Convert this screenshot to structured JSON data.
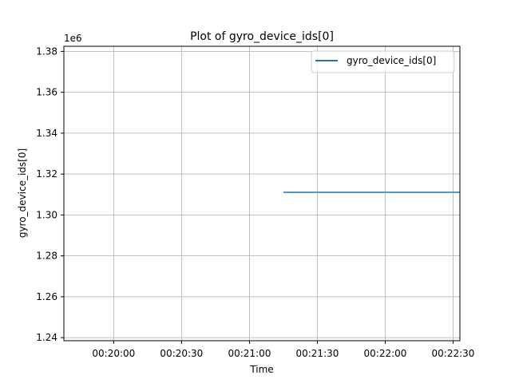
{
  "chart_data": {
    "type": "line",
    "title": "Plot of gyro_device_ids[0]",
    "xlabel": "Time",
    "ylabel": "gyro_device_ids[0]",
    "y_offset_label": "1e6",
    "x_axis_type": "time",
    "xlim": [
      "00:19:38",
      "00:22:33"
    ],
    "ylim": [
      1.2385,
      1.3825
    ],
    "x_ticks": [
      "00:20:00",
      "00:20:30",
      "00:21:00",
      "00:21:30",
      "00:22:00",
      "00:22:30"
    ],
    "y_ticks": [
      1.24,
      1.26,
      1.28,
      1.3,
      1.32,
      1.34,
      1.36,
      1.38
    ],
    "y_tick_labels": [
      "1.24",
      "1.26",
      "1.28",
      "1.30",
      "1.32",
      "1.34",
      "1.36",
      "1.38"
    ],
    "grid": true,
    "legend_position": "top-right",
    "series": [
      {
        "name": "gyro_device_ids[0]",
        "color": "#1f77b4",
        "x": [
          "00:21:15",
          "00:22:33"
        ],
        "y": [
          1.3111,
          1.3111
        ]
      }
    ]
  }
}
